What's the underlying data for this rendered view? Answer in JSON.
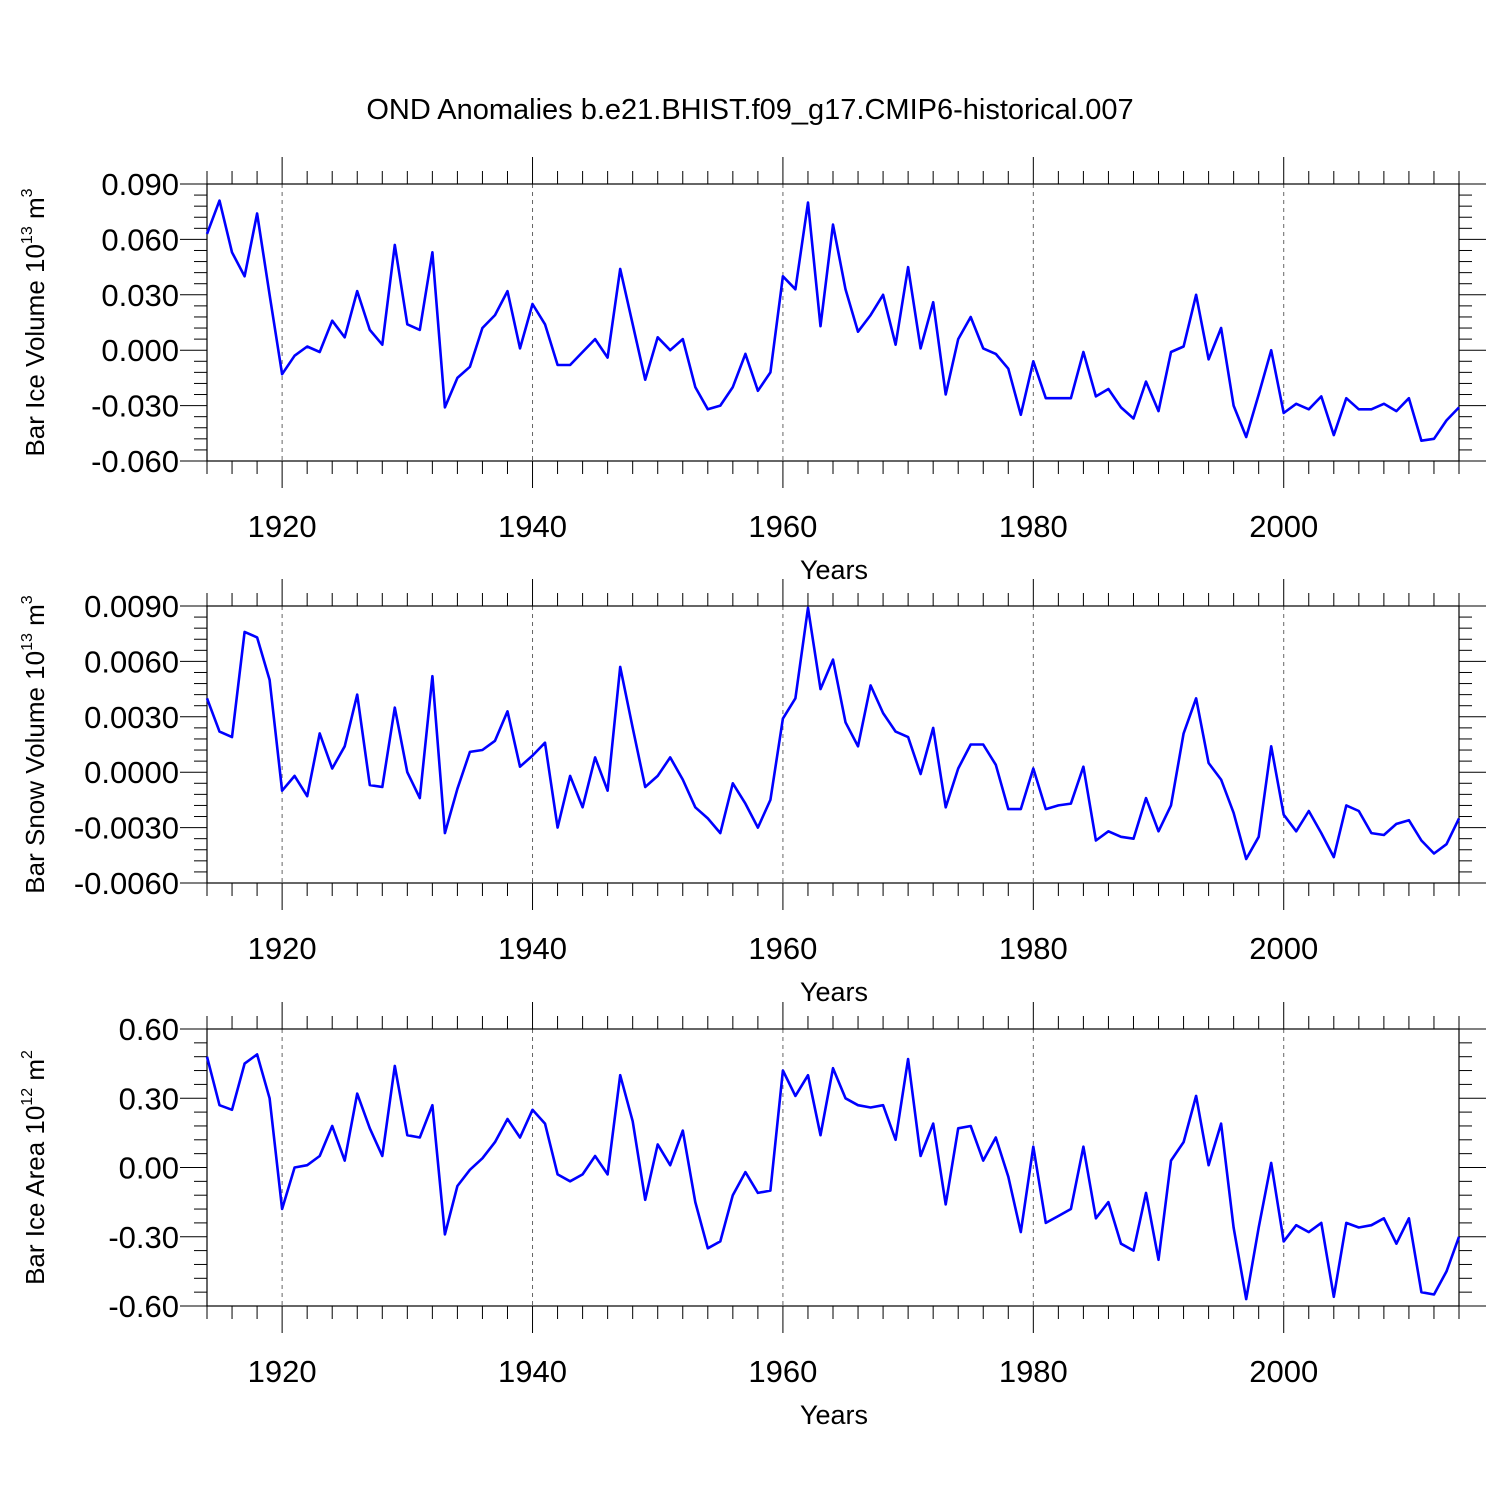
{
  "figure_title": "OND Anomalies b.e21.BHIST.f09_g17.CMIP6-historical.007",
  "line_color": "#0000ff",
  "chart_data": [
    {
      "type": "line",
      "title": "",
      "xlabel": "Years",
      "ylabel": {
        "main": "Bar Ice Volume 10",
        "sup1": "13",
        "mid": " m",
        "sup2": "3"
      },
      "xlim": [
        1914,
        2014
      ],
      "ylim": [
        -0.06,
        0.09
      ],
      "xticks": [
        1920,
        1940,
        1960,
        1980,
        2000
      ],
      "yticks": [
        -0.06,
        -0.03,
        0.0,
        0.03,
        0.06,
        0.09
      ],
      "ytick_labels": [
        "-0.060",
        "-0.030",
        "0.000",
        "0.030",
        "0.060",
        "0.090"
      ],
      "x_start": 1914,
      "series": [
        {
          "name": "Bar Ice Volume",
          "values": [
            0.063,
            0.081,
            0.053,
            0.04,
            0.074,
            0.03,
            -0.013,
            -0.003,
            0.002,
            -0.001,
            0.016,
            0.007,
            0.032,
            0.011,
            0.003,
            0.057,
            0.014,
            0.011,
            0.053,
            -0.031,
            -0.015,
            -0.009,
            0.012,
            0.019,
            0.032,
            0.001,
            0.025,
            0.014,
            -0.008,
            -0.008,
            -0.001,
            0.006,
            -0.004,
            0.044,
            0.014,
            -0.016,
            0.007,
            0.0,
            0.006,
            -0.02,
            -0.032,
            -0.03,
            -0.02,
            -0.002,
            -0.022,
            -0.012,
            0.04,
            0.033,
            0.08,
            0.013,
            0.068,
            0.033,
            0.01,
            0.019,
            0.03,
            0.003,
            0.045,
            0.001,
            0.026,
            -0.024,
            0.006,
            0.018,
            0.001,
            -0.002,
            -0.01,
            -0.035,
            -0.006,
            -0.026,
            -0.026,
            -0.026,
            -0.001,
            -0.025,
            -0.021,
            -0.031,
            -0.037,
            -0.017,
            -0.033,
            -0.001,
            0.002,
            0.03,
            -0.005,
            0.012,
            -0.03,
            -0.047,
            -0.024,
            0.0,
            -0.034,
            -0.029,
            -0.032,
            -0.025,
            -0.046,
            -0.026,
            -0.032,
            -0.032,
            -0.029,
            -0.033,
            -0.026,
            -0.049,
            -0.048,
            -0.038,
            -0.031
          ]
        }
      ]
    },
    {
      "type": "line",
      "title": "",
      "xlabel": "Years",
      "ylabel": {
        "main": "Bar Snow Volume 10",
        "sup1": "13",
        "mid": " m",
        "sup2": "3"
      },
      "xlim": [
        1914,
        2014
      ],
      "ylim": [
        -0.006,
        0.009
      ],
      "xticks": [
        1920,
        1940,
        1960,
        1980,
        2000
      ],
      "yticks": [
        -0.006,
        -0.003,
        0.0,
        0.003,
        0.006,
        0.009
      ],
      "ytick_labels": [
        "-0.0060",
        "-0.0030",
        "0.0000",
        "0.0030",
        "0.0060",
        "0.0090"
      ],
      "x_start": 1914,
      "series": [
        {
          "name": "Bar Snow Volume",
          "values": [
            0.004,
            0.0022,
            0.0019,
            0.0076,
            0.0073,
            0.005,
            -0.001,
            -0.0002,
            -0.0013,
            0.0021,
            0.0002,
            0.0014,
            0.0042,
            -0.0007,
            -0.0008,
            0.0035,
            0.0,
            -0.0014,
            0.0052,
            -0.0033,
            -0.0009,
            0.0011,
            0.0012,
            0.0017,
            0.0033,
            0.0003,
            0.0009,
            0.0016,
            -0.003,
            -0.0002,
            -0.0019,
            0.0008,
            -0.001,
            0.0057,
            0.0024,
            -0.0008,
            -0.0002,
            0.0008,
            -0.0004,
            -0.0019,
            -0.0025,
            -0.0033,
            -0.0006,
            -0.0017,
            -0.003,
            -0.0015,
            0.0029,
            0.004,
            0.0089,
            0.0045,
            0.0061,
            0.0027,
            0.0014,
            0.0047,
            0.0032,
            0.0022,
            0.0019,
            -0.0001,
            0.0024,
            -0.0019,
            0.0002,
            0.0015,
            0.0015,
            0.0004,
            -0.002,
            -0.002,
            0.0002,
            -0.002,
            -0.0018,
            -0.0017,
            0.0003,
            -0.0037,
            -0.0032,
            -0.0035,
            -0.0036,
            -0.0014,
            -0.0032,
            -0.0018,
            0.0021,
            0.004,
            0.0005,
            -0.0004,
            -0.0022,
            -0.0047,
            -0.0035,
            0.0014,
            -0.0023,
            -0.0032,
            -0.0021,
            -0.0033,
            -0.0046,
            -0.0018,
            -0.0021,
            -0.0033,
            -0.0034,
            -0.0028,
            -0.0026,
            -0.0037,
            -0.0044,
            -0.0039,
            -0.0025
          ]
        }
      ]
    },
    {
      "type": "line",
      "title": "",
      "xlabel": "Years",
      "ylabel": {
        "main": "Bar Ice Area 10",
        "sup1": "12",
        "mid": " m",
        "sup2": "2"
      },
      "xlim": [
        1914,
        2014
      ],
      "ylim": [
        -0.6,
        0.6
      ],
      "xticks": [
        1920,
        1940,
        1960,
        1980,
        2000
      ],
      "yticks": [
        -0.6,
        -0.3,
        0.0,
        0.3,
        0.6
      ],
      "ytick_labels": [
        "-0.60",
        "-0.30",
        "0.00",
        "0.30",
        "0.60"
      ],
      "x_start": 1914,
      "series": [
        {
          "name": "Bar Ice Area",
          "values": [
            0.48,
            0.27,
            0.25,
            0.45,
            0.49,
            0.3,
            -0.18,
            0.0,
            0.01,
            0.05,
            0.18,
            0.03,
            0.32,
            0.17,
            0.05,
            0.44,
            0.14,
            0.13,
            0.27,
            -0.29,
            -0.08,
            -0.01,
            0.04,
            0.11,
            0.21,
            0.13,
            0.25,
            0.19,
            -0.03,
            -0.06,
            -0.03,
            0.05,
            -0.03,
            0.4,
            0.2,
            -0.14,
            0.1,
            0.01,
            0.16,
            -0.15,
            -0.35,
            -0.32,
            -0.12,
            -0.02,
            -0.11,
            -0.1,
            0.42,
            0.31,
            0.4,
            0.14,
            0.43,
            0.3,
            0.27,
            0.26,
            0.27,
            0.12,
            0.47,
            0.05,
            0.19,
            -0.16,
            0.17,
            0.18,
            0.03,
            0.13,
            -0.04,
            -0.28,
            0.09,
            -0.24,
            -0.21,
            -0.18,
            0.09,
            -0.22,
            -0.15,
            -0.33,
            -0.36,
            -0.11,
            -0.4,
            0.03,
            0.11,
            0.31,
            0.01,
            0.19,
            -0.26,
            -0.57,
            -0.26,
            0.02,
            -0.32,
            -0.25,
            -0.28,
            -0.24,
            -0.56,
            -0.24,
            -0.26,
            -0.25,
            -0.22,
            -0.33,
            -0.22,
            -0.54,
            -0.55,
            -0.45,
            -0.3
          ]
        }
      ]
    }
  ]
}
